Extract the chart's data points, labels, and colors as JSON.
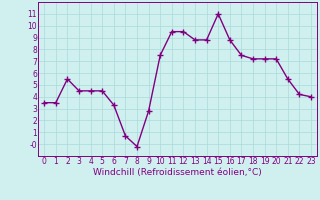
{
  "x": [
    0,
    1,
    2,
    3,
    4,
    5,
    6,
    7,
    8,
    9,
    10,
    11,
    12,
    13,
    14,
    15,
    16,
    17,
    18,
    19,
    20,
    21,
    22,
    23
  ],
  "y": [
    3.5,
    3.5,
    5.5,
    4.5,
    4.5,
    4.5,
    3.3,
    0.7,
    -0.2,
    2.8,
    7.5,
    9.5,
    9.5,
    8.8,
    8.8,
    11.0,
    8.8,
    7.5,
    7.2,
    7.2,
    7.2,
    5.5,
    4.2,
    4.0
  ],
  "color": "#800080",
  "bg_color": "#d0f0f0",
  "grid_color": "#aadada",
  "xlabel": "Windchill (Refroidissement éolien,°C)",
  "ylim": [
    -1,
    12
  ],
  "xlim": [
    -0.5,
    23.5
  ],
  "yticks": [
    0,
    1,
    2,
    3,
    4,
    5,
    6,
    7,
    8,
    9,
    10,
    11
  ],
  "xticks": [
    0,
    1,
    2,
    3,
    4,
    5,
    6,
    7,
    8,
    9,
    10,
    11,
    12,
    13,
    14,
    15,
    16,
    17,
    18,
    19,
    20,
    21,
    22,
    23
  ],
  "marker": "+",
  "markersize": 4,
  "linewidth": 1.0,
  "xlabel_fontsize": 6.5,
  "tick_fontsize": 5.5,
  "fig_width": 3.2,
  "fig_height": 2.0,
  "dpi": 100
}
